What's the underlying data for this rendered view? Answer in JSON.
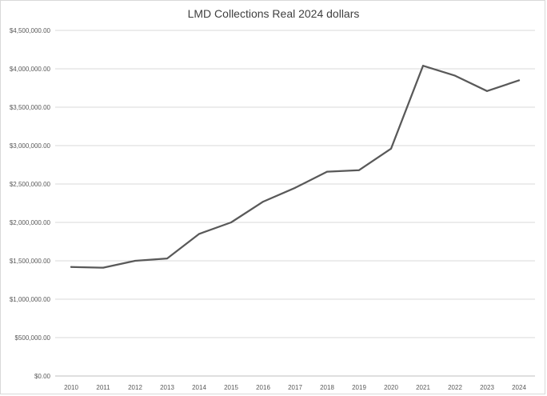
{
  "chart_data": {
    "type": "line",
    "title": "LMD Collections Real 2024 dollars",
    "xlabel": "",
    "ylabel": "",
    "x": [
      "2010",
      "2011",
      "2012",
      "2013",
      "2014",
      "2015",
      "2016",
      "2017",
      "2018",
      "2019",
      "2020",
      "2021",
      "2022",
      "2023",
      "2024"
    ],
    "series": [
      {
        "values": [
          1420000,
          1410000,
          1500000,
          1530000,
          1850000,
          2000000,
          2270000,
          2450000,
          2660000,
          2680000,
          2960000,
          4040000,
          3910000,
          3710000,
          3850000
        ]
      }
    ],
    "ylim": [
      0,
      4500000
    ],
    "yticks": [
      0,
      500000,
      1000000,
      1500000,
      2000000,
      2500000,
      3000000,
      3500000,
      4000000,
      4500000
    ],
    "ytick_labels": [
      "$0.00",
      "$500,000.00",
      "$1,000,000.00",
      "$1,500,000.00",
      "$2,000,000.00",
      "$2,500,000.00",
      "$3,000,000.00",
      "$3,500,000.00",
      "$4,000,000.00",
      "$4,500,000.00"
    ],
    "grid": true,
    "legend": "none",
    "line_color": "#595959"
  }
}
